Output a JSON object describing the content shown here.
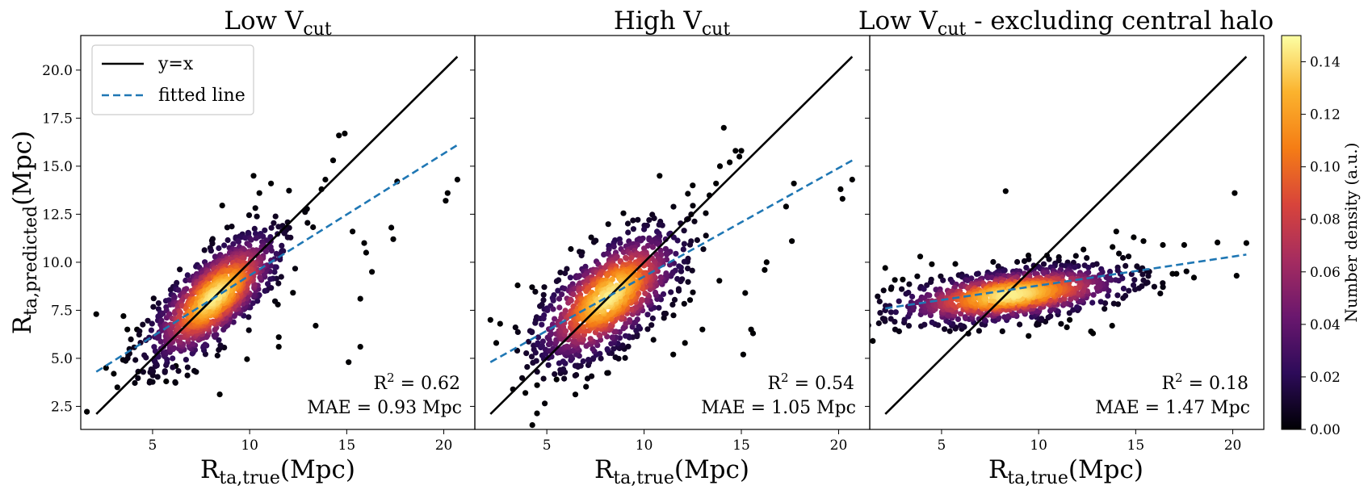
{
  "colors": {
    "identity_line": "#000000",
    "fitted_line": "#1f77b4",
    "colormap": [
      "#000004",
      "#2d0b59",
      "#6a176e",
      "#a52c60",
      "#d8443b",
      "#f57d15",
      "#fbb32e",
      "#fcffa4"
    ]
  },
  "legend": {
    "identity_label": "y=x",
    "fit_label": "fitted line",
    "placement": "upper-left"
  },
  "colorbar": {
    "label": "Number density (a.u.)",
    "range": [
      0.0,
      0.15
    ],
    "ticks": [
      "0.00",
      "0.02",
      "0.04",
      "0.06",
      "0.08",
      "0.10",
      "0.12",
      "0.14"
    ],
    "tick_values": [
      0.0,
      0.02,
      0.04,
      0.06,
      0.08,
      0.1,
      0.12,
      0.14
    ]
  },
  "chart_data": [
    {
      "type": "scatter",
      "title_main": "Low V",
      "title_sub": "cut",
      "title_suffix": "",
      "xlabel_main": "R",
      "xlabel_sub": "ta,true",
      "xlabel_unit": "(Mpc)",
      "ylabel_main": "R",
      "ylabel_sub": "ta,predicted",
      "ylabel_unit": "(Mpc)",
      "xlim": [
        1.3,
        21.6
      ],
      "ylim": [
        1.3,
        21.8
      ],
      "xticks": [
        5,
        10,
        15,
        20
      ],
      "yticks": [
        2.5,
        5.0,
        7.5,
        10.0,
        12.5,
        15.0,
        17.5,
        20.0
      ],
      "ytick_labels": [
        "2.5",
        "5.0",
        "7.5",
        "10.0",
        "12.5",
        "15.0",
        "17.5",
        "20.0"
      ],
      "identity_line": [
        [
          2.1,
          2.1
        ],
        [
          20.7,
          20.7
        ]
      ],
      "fitted_line": [
        [
          2.1,
          4.3
        ],
        [
          20.7,
          16.1
        ]
      ],
      "r2_label": "R",
      "r2_value": " = 0.62",
      "mae_label": "MAE = 0.93 Mpc",
      "cluster": {
        "center": [
          8.2,
          8.2
        ],
        "spread_major": 2.2,
        "spread_minor": 0.9,
        "angle_deg": 45,
        "n_points": 1100
      },
      "outliers": [
        [
          2.1,
          7.3
        ],
        [
          2.6,
          4.5
        ],
        [
          3.0,
          4.2
        ],
        [
          3.5,
          7.2
        ],
        [
          3.7,
          6.5
        ],
        [
          4.2,
          6.5
        ],
        [
          5.7,
          3.8
        ],
        [
          6.2,
          4.6
        ],
        [
          10.2,
          14.5
        ],
        [
          10.5,
          13.6
        ],
        [
          11.1,
          14.1
        ],
        [
          13.7,
          13.8
        ],
        [
          13.9,
          14.3
        ],
        [
          14.3,
          15.3
        ],
        [
          14.6,
          16.6
        ],
        [
          14.9,
          16.7
        ],
        [
          15.3,
          11.6
        ],
        [
          15.9,
          11.0
        ],
        [
          15.7,
          8.1
        ],
        [
          15.7,
          5.6
        ],
        [
          15.1,
          4.8
        ],
        [
          16.0,
          10.5
        ],
        [
          16.3,
          9.5
        ],
        [
          17.3,
          11.8
        ],
        [
          17.4,
          11.2
        ],
        [
          17.6,
          14.2
        ],
        [
          20.1,
          13.2
        ],
        [
          20.2,
          13.6
        ],
        [
          20.7,
          14.3
        ],
        [
          11.5,
          5.6
        ],
        [
          11.5,
          6.1
        ],
        [
          13.4,
          6.7
        ]
      ]
    },
    {
      "type": "scatter",
      "title_main": "High V",
      "title_sub": "cut",
      "title_suffix": "",
      "xlabel_main": "R",
      "xlabel_sub": "ta,true",
      "xlabel_unit": "(Mpc)",
      "xlim": [
        1.3,
        21.6
      ],
      "ylim": [
        1.3,
        21.8
      ],
      "xticks": [
        5,
        10,
        15,
        20
      ],
      "identity_line": [
        [
          2.1,
          2.1
        ],
        [
          20.7,
          20.7
        ]
      ],
      "fitted_line": [
        [
          2.1,
          4.8
        ],
        [
          20.7,
          15.3
        ]
      ],
      "r2_label": "R",
      "r2_value": " = 0.54",
      "mae_label": "MAE = 1.05 Mpc",
      "cluster": {
        "center": [
          8.2,
          8.2
        ],
        "spread_major": 2.3,
        "spread_minor": 1.1,
        "angle_deg": 42,
        "n_points": 1100
      },
      "outliers": [
        [
          2.1,
          7.0
        ],
        [
          2.4,
          5.8
        ],
        [
          2.6,
          6.8
        ],
        [
          3.5,
          8.8
        ],
        [
          3.9,
          3.2
        ],
        [
          4.5,
          3.6
        ],
        [
          5.5,
          3.9
        ],
        [
          10.8,
          14.5
        ],
        [
          12.5,
          14.0
        ],
        [
          13.7,
          14.1
        ],
        [
          13.9,
          15.0
        ],
        [
          14.4,
          15.2
        ],
        [
          14.7,
          15.8
        ],
        [
          14.1,
          17.0
        ],
        [
          14.9,
          15.5
        ],
        [
          15.0,
          15.8
        ],
        [
          15.2,
          8.4
        ],
        [
          15.5,
          6.5
        ],
        [
          15.6,
          6.3
        ],
        [
          15.1,
          5.2
        ],
        [
          16.2,
          9.6
        ],
        [
          16.3,
          10.0
        ],
        [
          17.3,
          12.9
        ],
        [
          17.6,
          11.1
        ],
        [
          17.7,
          14.1
        ],
        [
          20.1,
          13.8
        ],
        [
          20.2,
          13.3
        ],
        [
          20.7,
          14.3
        ],
        [
          11.5,
          5.2
        ],
        [
          12.1,
          5.8
        ],
        [
          13.0,
          6.5
        ]
      ]
    },
    {
      "type": "scatter",
      "title_main": "Low V",
      "title_sub": "cut",
      "title_suffix": " - excluding central halo",
      "xlabel_main": "R",
      "xlabel_sub": "ta,true",
      "xlabel_unit": "(Mpc)",
      "xlim": [
        1.3,
        21.6
      ],
      "ylim": [
        1.3,
        21.8
      ],
      "xticks": [
        5,
        10,
        15,
        20
      ],
      "identity_line": [
        [
          2.1,
          2.1
        ],
        [
          20.7,
          20.7
        ]
      ],
      "fitted_line": [
        [
          2.1,
          7.6
        ],
        [
          20.7,
          10.4
        ]
      ],
      "r2_label": "R",
      "r2_value": " = 0.18",
      "mae_label": "MAE = 1.47 Mpc",
      "cluster": {
        "center": [
          8.6,
          8.3
        ],
        "spread_major": 3.0,
        "spread_minor": 0.65,
        "angle_deg": 7,
        "n_points": 1100
      },
      "outliers": [
        [
          2.1,
          9.7
        ],
        [
          2.4,
          8.6
        ],
        [
          3.0,
          9.1
        ],
        [
          3.9,
          10.3
        ],
        [
          4.5,
          9.9
        ],
        [
          8.3,
          13.7
        ],
        [
          14.0,
          11.6
        ],
        [
          14.9,
          11.3
        ],
        [
          15.4,
          11.1
        ],
        [
          16.4,
          10.9
        ],
        [
          16.9,
          9.4
        ],
        [
          17.5,
          10.9
        ],
        [
          17.1,
          9.4
        ],
        [
          18.0,
          9.2
        ],
        [
          20.1,
          13.6
        ],
        [
          20.2,
          9.3
        ],
        [
          20.7,
          11.0
        ],
        [
          12.7,
          6.4
        ],
        [
          12.8,
          6.3
        ],
        [
          11.6,
          7.0
        ]
      ]
    }
  ]
}
